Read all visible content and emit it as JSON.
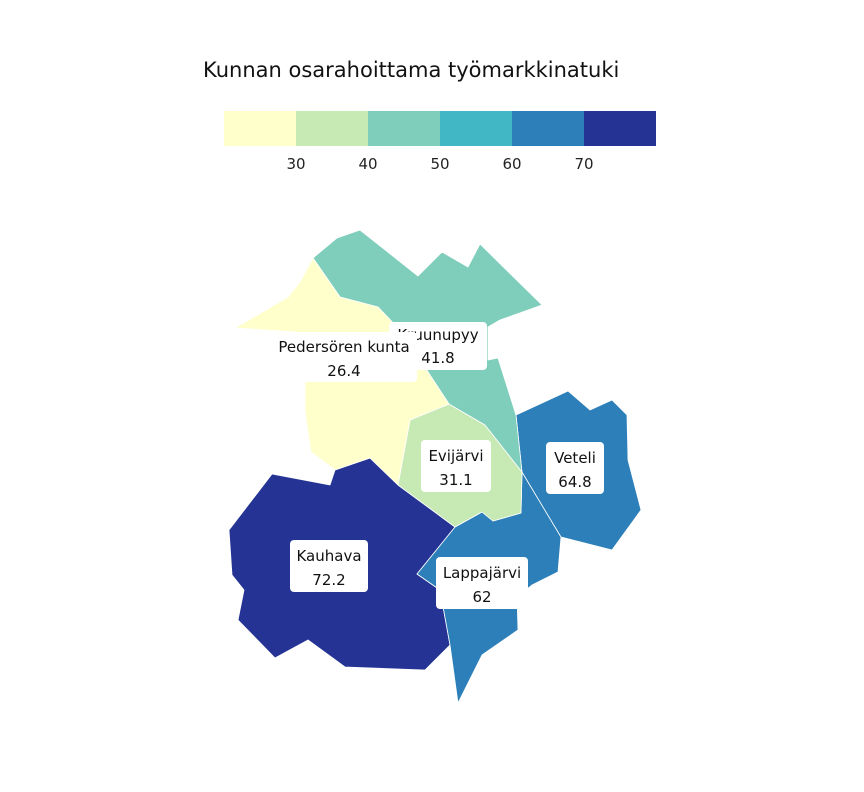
{
  "title": "Kunnan osarahoittama työmarkkinatuki",
  "legend": {
    "colors": [
      "#ffffcc",
      "#c7e9b4",
      "#7fcdbb",
      "#41b6c4",
      "#2c7fb8",
      "#253494"
    ],
    "thresholds": [
      30,
      40,
      50,
      60,
      70
    ],
    "tick_labels": [
      "30",
      "40",
      "50",
      "60",
      "70"
    ]
  },
  "regions": [
    {
      "key": "kruunupyy",
      "name": "Kruunupyy",
      "value": 41.8,
      "value_label": "41.8",
      "color": "#7fcdbb"
    },
    {
      "key": "pedersore",
      "name": "Pedersören kunta",
      "value": 26.4,
      "value_label": "26.4",
      "color": "#ffffcc"
    },
    {
      "key": "evijarvi",
      "name": "Evijärvi",
      "value": 31.1,
      "value_label": "31.1",
      "color": "#c7e9b4"
    },
    {
      "key": "veteli",
      "name": "Veteli",
      "value": 64.8,
      "value_label": "64.8",
      "color": "#2c7fb8"
    },
    {
      "key": "kauhava",
      "name": "Kauhava",
      "value": 72.2,
      "value_label": "72.2",
      "color": "#253494"
    },
    {
      "key": "lappajarvi",
      "name": "Lappajärvi",
      "value": 62,
      "value_label": "62",
      "color": "#2c7fb8"
    }
  ]
}
